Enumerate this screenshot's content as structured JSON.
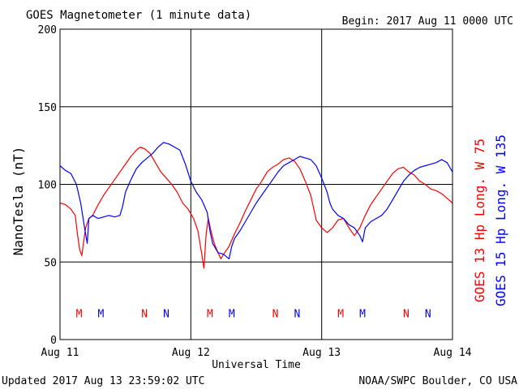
{
  "chart_data": {
    "type": "line",
    "title": "GOES Magnetometer (1 minute data)",
    "begin_label": "Begin:  2017 Aug 11 0000 UTC",
    "xlabel": "Universal Time",
    "ylabel": "NanoTesla (nT)",
    "ylim": [
      0,
      200
    ],
    "yticks": [
      "0",
      "50",
      "100",
      "150",
      "200"
    ],
    "xlim": [
      0,
      72
    ],
    "x_unit": "hours since 2017 Aug 11 0000 UTC",
    "xticks": [
      {
        "x": 0,
        "label": "Aug 11"
      },
      {
        "x": 24,
        "label": "Aug 12"
      },
      {
        "x": 48,
        "label": "Aug 13"
      },
      {
        "x": 72,
        "label": "Aug 14"
      }
    ],
    "grid": true,
    "legend_position": "right, vertical",
    "series": [
      {
        "name": "GOES 13 Hp  Long. W 75",
        "color": "#ff0000",
        "points": [
          [
            0,
            88
          ],
          [
            1,
            87
          ],
          [
            2,
            84
          ],
          [
            2.8,
            80
          ],
          [
            3.2,
            68
          ],
          [
            3.6,
            58
          ],
          [
            4,
            54
          ],
          [
            4.3,
            62
          ],
          [
            4.7,
            72
          ],
          [
            5.3,
            78
          ],
          [
            6,
            80
          ],
          [
            7,
            87
          ],
          [
            8,
            93
          ],
          [
            9,
            98
          ],
          [
            10,
            103
          ],
          [
            11,
            108
          ],
          [
            12,
            113
          ],
          [
            13,
            118
          ],
          [
            14,
            122
          ],
          [
            14.7,
            124
          ],
          [
            15.5,
            123
          ],
          [
            16.5,
            120
          ],
          [
            17.5,
            114
          ],
          [
            18.5,
            108
          ],
          [
            19.5,
            104
          ],
          [
            20.5,
            100
          ],
          [
            21.5,
            95
          ],
          [
            22.5,
            88
          ],
          [
            23.5,
            84
          ],
          [
            24.5,
            78
          ],
          [
            25.3,
            70
          ],
          [
            26,
            55
          ],
          [
            26.4,
            46
          ],
          [
            26.8,
            68
          ],
          [
            27.2,
            78
          ],
          [
            27.7,
            70
          ],
          [
            28.3,
            62
          ],
          [
            29,
            56
          ],
          [
            29.5,
            52
          ],
          [
            30,
            55
          ],
          [
            31,
            60
          ],
          [
            32,
            68
          ],
          [
            33,
            75
          ],
          [
            34,
            83
          ],
          [
            35,
            90
          ],
          [
            36,
            97
          ],
          [
            37,
            102
          ],
          [
            38,
            108
          ],
          [
            39,
            111
          ],
          [
            40,
            113
          ],
          [
            41,
            116
          ],
          [
            42,
            117
          ],
          [
            43,
            115
          ],
          [
            44,
            110
          ],
          [
            45,
            102
          ],
          [
            46,
            93
          ],
          [
            46.5,
            85
          ],
          [
            47,
            77
          ],
          [
            48,
            72
          ],
          [
            49,
            69
          ],
          [
            50,
            72
          ],
          [
            51,
            77
          ],
          [
            52,
            78
          ],
          [
            53,
            72
          ],
          [
            54,
            67
          ],
          [
            55,
            72
          ],
          [
            56,
            80
          ],
          [
            57,
            87
          ],
          [
            58,
            92
          ],
          [
            59,
            97
          ],
          [
            60,
            102
          ],
          [
            61,
            107
          ],
          [
            62,
            110
          ],
          [
            63,
            111
          ],
          [
            64,
            108
          ],
          [
            65,
            106
          ],
          [
            66,
            102
          ],
          [
            67,
            100
          ],
          [
            68,
            97
          ],
          [
            69,
            96
          ],
          [
            70,
            94
          ],
          [
            71,
            91
          ],
          [
            72,
            88
          ]
        ]
      },
      {
        "name": "GOES 15 Hp  Long. W 135",
        "color": "#0000ff",
        "points": [
          [
            0,
            112
          ],
          [
            1,
            109
          ],
          [
            2,
            107
          ],
          [
            3,
            100
          ],
          [
            3.8,
            88
          ],
          [
            4.5,
            72
          ],
          [
            5,
            62
          ],
          [
            5.3,
            78
          ],
          [
            6,
            80
          ],
          [
            7,
            78
          ],
          [
            8,
            79
          ],
          [
            9,
            80
          ],
          [
            10,
            79
          ],
          [
            11,
            80
          ],
          [
            11.5,
            86
          ],
          [
            12,
            95
          ],
          [
            13,
            103
          ],
          [
            14,
            110
          ],
          [
            15,
            114
          ],
          [
            16,
            117
          ],
          [
            17,
            120
          ],
          [
            18,
            124
          ],
          [
            19,
            127
          ],
          [
            20,
            126
          ],
          [
            21,
            124
          ],
          [
            22,
            122
          ],
          [
            23,
            113
          ],
          [
            24,
            102
          ],
          [
            25,
            95
          ],
          [
            26,
            90
          ],
          [
            27,
            82
          ],
          [
            27.5,
            70
          ],
          [
            28,
            62
          ],
          [
            29,
            56
          ],
          [
            30,
            55
          ],
          [
            31,
            52
          ],
          [
            31.5,
            60
          ],
          [
            32,
            65
          ],
          [
            33,
            70
          ],
          [
            34,
            76
          ],
          [
            35,
            82
          ],
          [
            36,
            88
          ],
          [
            37,
            93
          ],
          [
            38,
            98
          ],
          [
            39,
            103
          ],
          [
            40,
            108
          ],
          [
            41,
            112
          ],
          [
            42,
            114
          ],
          [
            43,
            116
          ],
          [
            44,
            118
          ],
          [
            45,
            117
          ],
          [
            46,
            116
          ],
          [
            47,
            112
          ],
          [
            48,
            104
          ],
          [
            49,
            95
          ],
          [
            49.5,
            88
          ],
          [
            50,
            84
          ],
          [
            51,
            80
          ],
          [
            52,
            78
          ],
          [
            53,
            74
          ],
          [
            54,
            72
          ],
          [
            55,
            67
          ],
          [
            55.5,
            63
          ],
          [
            56,
            72
          ],
          [
            57,
            76
          ],
          [
            58,
            78
          ],
          [
            59,
            80
          ],
          [
            60,
            84
          ],
          [
            61,
            90
          ],
          [
            62,
            96
          ],
          [
            63,
            102
          ],
          [
            64,
            106
          ],
          [
            65,
            109
          ],
          [
            66,
            111
          ],
          [
            67,
            112
          ],
          [
            68,
            113
          ],
          [
            69,
            114
          ],
          [
            70,
            116
          ],
          [
            71,
            114
          ],
          [
            72,
            108
          ]
        ]
      }
    ],
    "markers": [
      {
        "x": 3.5,
        "label": "M",
        "color": "#ff0000"
      },
      {
        "x": 7.5,
        "label": "M",
        "color": "#0000ff"
      },
      {
        "x": 15.5,
        "label": "N",
        "color": "#ff0000"
      },
      {
        "x": 19.5,
        "label": "N",
        "color": "#0000ff"
      },
      {
        "x": 27.5,
        "label": "M",
        "color": "#ff0000"
      },
      {
        "x": 31.5,
        "label": "M",
        "color": "#0000ff"
      },
      {
        "x": 39.5,
        "label": "N",
        "color": "#ff0000"
      },
      {
        "x": 43.5,
        "label": "N",
        "color": "#0000ff"
      },
      {
        "x": 51.5,
        "label": "M",
        "color": "#ff0000"
      },
      {
        "x": 55.5,
        "label": "M",
        "color": "#0000ff"
      },
      {
        "x": 63.5,
        "label": "N",
        "color": "#ff0000"
      },
      {
        "x": 67.5,
        "label": "N",
        "color": "#0000ff"
      }
    ],
    "marker_y": 17,
    "footer_left": "Updated 2017 Aug 13 23:59:02 UTC",
    "footer_right": "NOAA/SWPC Boulder, CO USA"
  }
}
